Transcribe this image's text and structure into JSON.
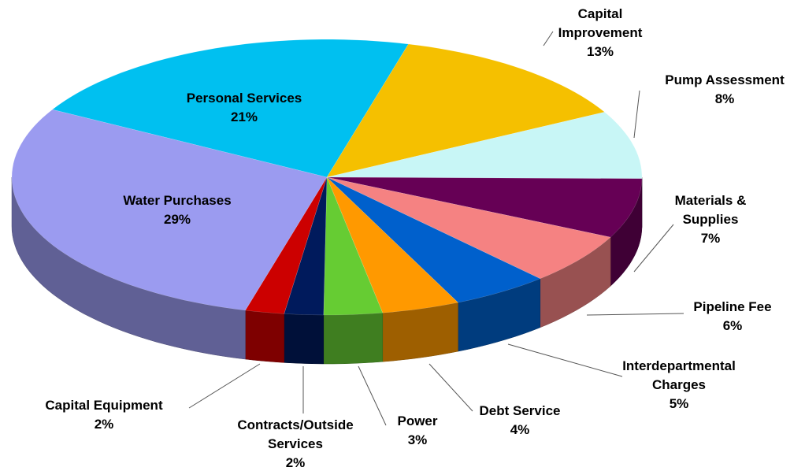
{
  "chart_data": {
    "type": "pie",
    "categories": [
      "Personal Services",
      "Capital Improvement",
      "Pump Assessment",
      "Materials & Supplies",
      "Pipeline Fee",
      "Interdepartmental Charges",
      "Debt Service",
      "Power",
      "Contracts/Outside Services",
      "Capital Equipment",
      "Water Purchases"
    ],
    "values": [
      21,
      13,
      8,
      7,
      6,
      5,
      4,
      3,
      2,
      2,
      29
    ],
    "value_labels": [
      "21%",
      "13%",
      "8%",
      "7%",
      "6%",
      "5%",
      "4%",
      "3%",
      "2%",
      "2%",
      "29%"
    ],
    "colors": [
      "#00c0f0",
      "#f5c000",
      "#c8f6f6",
      "#660055",
      "#f58282",
      "#0060cc",
      "#ff9900",
      "#66cc33",
      "#001a5c",
      "#cc0000",
      "#9b9bf0"
    ]
  }
}
